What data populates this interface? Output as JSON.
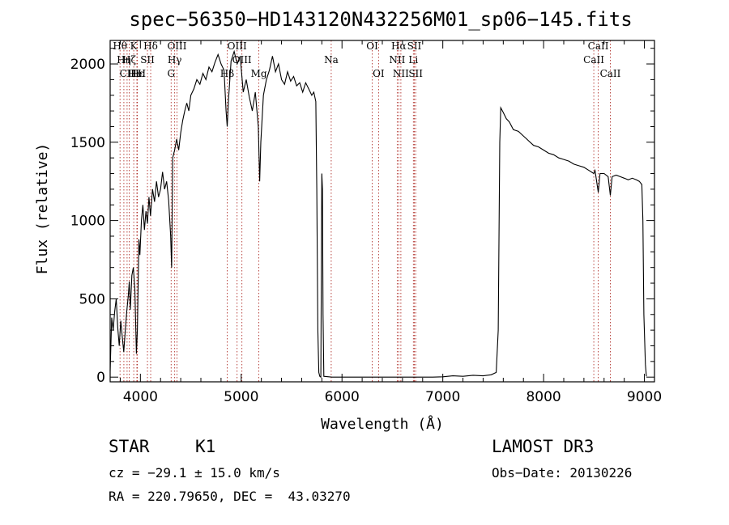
{
  "chart_data": {
    "type": "line",
    "title": "spec−56350−HD143120N432256M01_sp06−145.fits",
    "xlabel": "Wavelength (Å)",
    "ylabel": "Flux (relative)",
    "xlim": [
      3700,
      9100
    ],
    "ylim": [
      -30,
      2150
    ],
    "xticks": [
      4000,
      5000,
      6000,
      7000,
      8000,
      9000
    ],
    "yticks": [
      0,
      500,
      1000,
      1500,
      2000
    ],
    "grid": false,
    "series": [
      {
        "name": "flux",
        "points": [
          [
            3700,
            40
          ],
          [
            3715,
            380
          ],
          [
            3730,
            300
          ],
          [
            3745,
            420
          ],
          [
            3760,
            500
          ],
          [
            3775,
            320
          ],
          [
            3790,
            200
          ],
          [
            3805,
            360
          ],
          [
            3820,
            260
          ],
          [
            3835,
            160
          ],
          [
            3850,
            300
          ],
          [
            3865,
            420
          ],
          [
            3880,
            520
          ],
          [
            3890,
            610
          ],
          [
            3900,
            430
          ],
          [
            3915,
            650
          ],
          [
            3930,
            700
          ],
          [
            3945,
            560
          ],
          [
            3960,
            150
          ],
          [
            3970,
            300
          ],
          [
            3985,
            880
          ],
          [
            3995,
            780
          ],
          [
            4010,
            1000
          ],
          [
            4025,
            1100
          ],
          [
            4040,
            940
          ],
          [
            4055,
            1060
          ],
          [
            4070,
            980
          ],
          [
            4085,
            1150
          ],
          [
            4100,
            1030
          ],
          [
            4120,
            1200
          ],
          [
            4140,
            1120
          ],
          [
            4160,
            1250
          ],
          [
            4180,
            1150
          ],
          [
            4200,
            1200
          ],
          [
            4220,
            1310
          ],
          [
            4240,
            1200
          ],
          [
            4260,
            1250
          ],
          [
            4280,
            1130
          ],
          [
            4300,
            900
          ],
          [
            4310,
            700
          ],
          [
            4320,
            1400
          ],
          [
            4340,
            1450
          ],
          [
            4360,
            1520
          ],
          [
            4380,
            1450
          ],
          [
            4400,
            1560
          ],
          [
            4420,
            1640
          ],
          [
            4440,
            1700
          ],
          [
            4460,
            1750
          ],
          [
            4480,
            1700
          ],
          [
            4500,
            1800
          ],
          [
            4530,
            1840
          ],
          [
            4560,
            1900
          ],
          [
            4590,
            1870
          ],
          [
            4620,
            1940
          ],
          [
            4650,
            1900
          ],
          [
            4680,
            1980
          ],
          [
            4710,
            1950
          ],
          [
            4740,
            2010
          ],
          [
            4770,
            2060
          ],
          [
            4800,
            2000
          ],
          [
            4830,
            1960
          ],
          [
            4850,
            1700
          ],
          [
            4861,
            1600
          ],
          [
            4875,
            1780
          ],
          [
            4900,
            2020
          ],
          [
            4930,
            2080
          ],
          [
            4960,
            2000
          ],
          [
            4990,
            2050
          ],
          [
            5020,
            1820
          ],
          [
            5050,
            1900
          ],
          [
            5080,
            1790
          ],
          [
            5110,
            1700
          ],
          [
            5140,
            1820
          ],
          [
            5170,
            1600
          ],
          [
            5183,
            1250
          ],
          [
            5195,
            1500
          ],
          [
            5220,
            1800
          ],
          [
            5250,
            1900
          ],
          [
            5280,
            1960
          ],
          [
            5310,
            2050
          ],
          [
            5340,
            1950
          ],
          [
            5370,
            2000
          ],
          [
            5400,
            1900
          ],
          [
            5430,
            1870
          ],
          [
            5460,
            1950
          ],
          [
            5490,
            1890
          ],
          [
            5520,
            1920
          ],
          [
            5550,
            1860
          ],
          [
            5580,
            1880
          ],
          [
            5610,
            1820
          ],
          [
            5640,
            1880
          ],
          [
            5670,
            1840
          ],
          [
            5700,
            1800
          ],
          [
            5720,
            1820
          ],
          [
            5740,
            1760
          ],
          [
            5750,
            1200
          ],
          [
            5760,
            300
          ],
          [
            5770,
            30
          ],
          [
            5780,
            5
          ],
          [
            5790,
            0
          ],
          [
            5800,
            1300
          ],
          [
            5806,
            1200
          ],
          [
            5812,
            400
          ],
          [
            5820,
            5
          ],
          [
            5900,
            0
          ],
          [
            6200,
            0
          ],
          [
            6600,
            0
          ],
          [
            6900,
            0
          ],
          [
            7000,
            2
          ],
          [
            7100,
            8
          ],
          [
            7200,
            5
          ],
          [
            7300,
            12
          ],
          [
            7400,
            8
          ],
          [
            7480,
            15
          ],
          [
            7530,
            30
          ],
          [
            7550,
            300
          ],
          [
            7565,
            1500
          ],
          [
            7575,
            1720
          ],
          [
            7600,
            1690
          ],
          [
            7630,
            1650
          ],
          [
            7660,
            1630
          ],
          [
            7700,
            1580
          ],
          [
            7750,
            1570
          ],
          [
            7800,
            1540
          ],
          [
            7850,
            1510
          ],
          [
            7900,
            1480
          ],
          [
            7950,
            1470
          ],
          [
            8000,
            1450
          ],
          [
            8050,
            1430
          ],
          [
            8100,
            1420
          ],
          [
            8150,
            1400
          ],
          [
            8200,
            1390
          ],
          [
            8250,
            1380
          ],
          [
            8300,
            1360
          ],
          [
            8350,
            1350
          ],
          [
            8400,
            1340
          ],
          [
            8450,
            1320
          ],
          [
            8498,
            1300
          ],
          [
            8510,
            1320
          ],
          [
            8542,
            1180
          ],
          [
            8560,
            1300
          ],
          [
            8600,
            1300
          ],
          [
            8640,
            1280
          ],
          [
            8662,
            1160
          ],
          [
            8680,
            1280
          ],
          [
            8720,
            1290
          ],
          [
            8760,
            1280
          ],
          [
            8800,
            1270
          ],
          [
            8840,
            1260
          ],
          [
            8880,
            1270
          ],
          [
            8920,
            1260
          ],
          [
            8950,
            1250
          ],
          [
            8975,
            1230
          ],
          [
            8985,
            1000
          ],
          [
            8995,
            400
          ],
          [
            9010,
            80
          ],
          [
            9020,
            5
          ]
        ]
      }
    ],
    "lines": [
      {
        "label": "Hθ",
        "x": 3798,
        "row": 1
      },
      {
        "label": "Hη",
        "x": 3836,
        "row": 2
      },
      {
        "label": "CII",
        "x": 3868,
        "row": 3
      },
      {
        "label": "K",
        "x": 3934,
        "row": 1
      },
      {
        "label": "Hζ",
        "x": 3889,
        "row": 2
      },
      {
        "label": "HeI",
        "x": 3965,
        "row": 3
      },
      {
        "label": "Hδ",
        "x": 4102,
        "row": 1
      },
      {
        "label": "SII",
        "x": 4070,
        "row": 2
      },
      {
        "label": "Hε",
        "x": 3970,
        "row": 3
      },
      {
        "label": "H",
        "x": 3968,
        "row": 3
      },
      {
        "label": "OIII",
        "x": 4363,
        "row": 1
      },
      {
        "label": "Hγ",
        "x": 4340,
        "row": 2
      },
      {
        "label": "G",
        "x": 4305,
        "row": 3
      },
      {
        "label": "OIII",
        "x": 4959,
        "row": 1
      },
      {
        "label": "OIII",
        "x": 5007,
        "row": 2
      },
      {
        "label": "Hβ",
        "x": 4861,
        "row": 3
      },
      {
        "label": "Mg",
        "x": 5175,
        "row": 3
      },
      {
        "label": "Na",
        "x": 5893,
        "row": 2
      },
      {
        "label": "OI",
        "x": 6300,
        "row": 1
      },
      {
        "label": "OI",
        "x": 6363,
        "row": 3
      },
      {
        "label": "Hα",
        "x": 6563,
        "row": 1
      },
      {
        "label": "NII",
        "x": 6548,
        "row": 2
      },
      {
        "label": "NII",
        "x": 6584,
        "row": 3
      },
      {
        "label": "SII",
        "x": 6717,
        "row": 1
      },
      {
        "label": "Li",
        "x": 6708,
        "row": 2
      },
      {
        "label": "SII",
        "x": 6731,
        "row": 3
      },
      {
        "label": "CaII",
        "x": 8498,
        "row": 2
      },
      {
        "label": "CaII",
        "x": 8542,
        "row": 1
      },
      {
        "label": "CaII",
        "x": 8662,
        "row": 3
      }
    ]
  },
  "meta": {
    "object_type": "STAR",
    "subclass": "K1",
    "survey": "LAMOST DR3",
    "cz": "cz = −29.1 ± 15.0 km/s",
    "obs_date": "Obs−Date: 20130226",
    "coords": "RA = 220.79650, DEC =  43.03270"
  },
  "colors": {
    "line_markers": "#b0302a",
    "spectrum": "#000000",
    "axes": "#000000"
  }
}
